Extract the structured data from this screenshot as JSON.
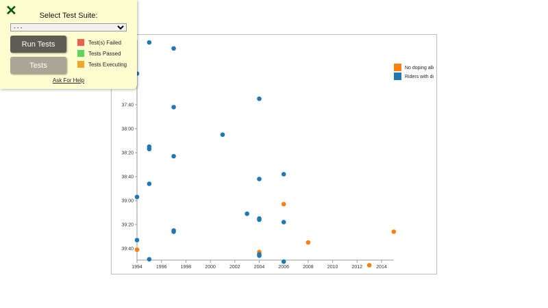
{
  "test_panel": {
    "close_icon": "x-icon",
    "title": "Select Test Suite:",
    "select_value": "- - -",
    "run_button": "Run Tests",
    "tests_button": "Tests",
    "legend": [
      {
        "label": "Test(s) Failed",
        "color": "#f25c4a"
      },
      {
        "label": "Tests Passed",
        "color": "#5cd65c"
      },
      {
        "label": "Tests Executing",
        "color": "#f5a623"
      }
    ],
    "help_link": "Ask For Help"
  },
  "chart_data": {
    "type": "scatter",
    "x_ticks": [
      "1994",
      "1996",
      "1998",
      "2000",
      "2002",
      "2004",
      "2006",
      "2008",
      "2010",
      "2012",
      "2014"
    ],
    "y_ticks": [
      "37:00",
      "37:20",
      "37:40",
      "38:00",
      "38:20",
      "38:40",
      "39:00",
      "39:20",
      "39:40"
    ],
    "xlim": [
      1994,
      2015
    ],
    "ylim": [
      "36:46",
      "39:50"
    ],
    "y_inverted": true,
    "legend_position": "top-right",
    "legend": [
      {
        "label": "No doping alle",
        "color": "#ff7f0e"
      },
      {
        "label": "Riders with dop",
        "color": "#1f77b4"
      }
    ],
    "points": [
      {
        "year": 1995,
        "time": "36:48",
        "doping": true
      },
      {
        "year": 1997,
        "time": "36:53",
        "doping": true
      },
      {
        "year": 1994,
        "time": "37:14",
        "doping": true
      },
      {
        "year": 2004,
        "time": "37:35",
        "doping": true
      },
      {
        "year": 1997,
        "time": "37:42",
        "doping": true
      },
      {
        "year": 2001,
        "time": "38:05",
        "doping": true
      },
      {
        "year": 1995,
        "time": "38:15",
        "doping": true
      },
      {
        "year": 1995,
        "time": "38:17",
        "doping": true
      },
      {
        "year": 1997,
        "time": "38:23",
        "doping": true
      },
      {
        "year": 2006,
        "time": "38:38",
        "doping": true
      },
      {
        "year": 2004,
        "time": "38:42",
        "doping": true
      },
      {
        "year": 1995,
        "time": "38:46",
        "doping": true
      },
      {
        "year": 1994,
        "time": "38:57",
        "doping": true
      },
      {
        "year": 2006,
        "time": "39:03",
        "doping": false
      },
      {
        "year": 2003,
        "time": "39:11",
        "doping": true
      },
      {
        "year": 2004,
        "time": "39:15",
        "doping": true
      },
      {
        "year": 2004,
        "time": "39:16",
        "doping": true
      },
      {
        "year": 2006,
        "time": "39:18",
        "doping": true
      },
      {
        "year": 1997,
        "time": "39:25",
        "doping": true
      },
      {
        "year": 1997,
        "time": "39:26",
        "doping": true
      },
      {
        "year": 2015,
        "time": "39:26",
        "doping": false
      },
      {
        "year": 1994,
        "time": "39:33",
        "doping": true
      },
      {
        "year": 2008,
        "time": "39:35",
        "doping": false
      },
      {
        "year": 1994,
        "time": "39:41",
        "doping": false
      },
      {
        "year": 2004,
        "time": "39:43",
        "doping": false
      },
      {
        "year": 2004,
        "time": "39:45",
        "doping": true
      },
      {
        "year": 2004,
        "time": "39:46",
        "doping": true
      },
      {
        "year": 1995,
        "time": "39:49",
        "doping": true
      },
      {
        "year": 2006,
        "time": "39:51",
        "doping": true
      },
      {
        "year": 2013,
        "time": "39:54",
        "doping": false
      }
    ]
  }
}
